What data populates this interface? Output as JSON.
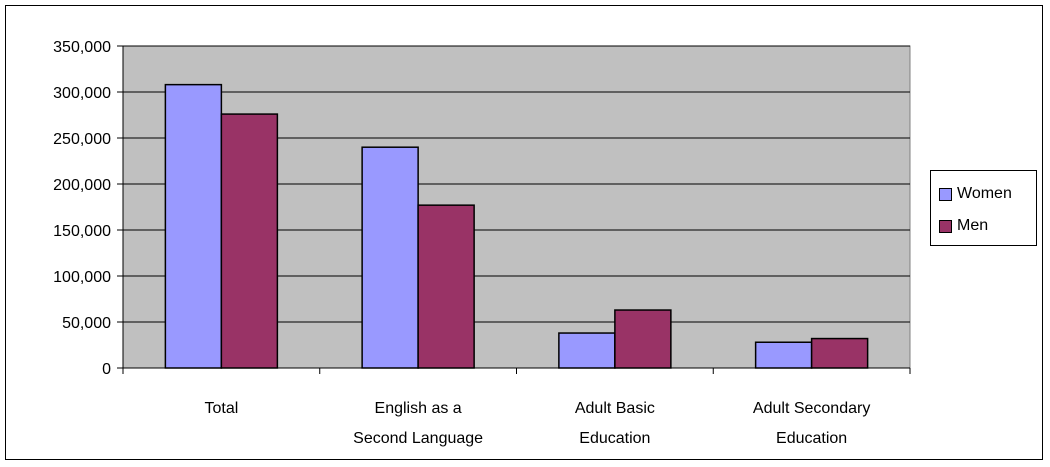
{
  "chart_data": {
    "type": "bar",
    "title": "",
    "xlabel": "",
    "ylabel": "",
    "ylim": [
      0,
      350000
    ],
    "yticks": [
      0,
      50000,
      100000,
      150000,
      200000,
      250000,
      300000,
      350000
    ],
    "ytick_labels": [
      "0",
      "50,000",
      "100,000",
      "150,000",
      "200,000",
      "250,000",
      "300,000",
      "350,000"
    ],
    "categories": [
      [
        "Total"
      ],
      [
        "English as a",
        "Second Language"
      ],
      [
        "Adult Basic",
        "Education"
      ],
      [
        "Adult Secondary",
        "Education"
      ]
    ],
    "series": [
      {
        "name": "Women",
        "color": "#9999ff",
        "values": [
          308000,
          240000,
          38000,
          28000
        ]
      },
      {
        "name": "Men",
        "color": "#993366",
        "values": [
          276000,
          177000,
          63000,
          32000
        ]
      }
    ],
    "grid": true,
    "legend_position": "right",
    "plot_background": "#c0c0c0"
  }
}
